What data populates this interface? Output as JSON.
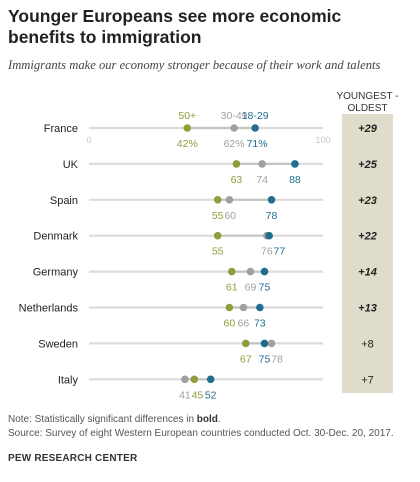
{
  "title": "Younger Europeans see more economic benefits to immigration",
  "subtitle": "Immigrants make our economy stronger because of their work and talents",
  "note": {
    "prefix": "Note: Statistically significant differences in ",
    "bold": "bold",
    "suffix": "."
  },
  "source": "Source: Survey of eight Western European countries conducted Oct. 30-Dec. 20, 2017.",
  "brand": "PEW RESEARCH CENTER",
  "chart_data": {
    "type": "scatter",
    "title": "Younger Europeans see more economic benefits to immigration",
    "subtitle": "Immigrants make our economy stronger because of their work and talents",
    "axis_min_label": "0",
    "axis_max_label": "100",
    "xlim": [
      0,
      100
    ],
    "diff_header": [
      "YOUNGEST -",
      "OLDEST"
    ],
    "legend": [
      "50+",
      "30-49",
      "18-29"
    ],
    "series": [
      {
        "name": "50+",
        "color": "#8f9e3a"
      },
      {
        "name": "30-49",
        "color": "#a0a0a0"
      },
      {
        "name": "18-29",
        "color": "#1f6e8f"
      }
    ],
    "colors": {
      "diff_column": "#e0dccb",
      "track": "#dcdcdc",
      "label_dark": "#222222"
    },
    "rows": [
      {
        "country": "France",
        "values": [
          42,
          62,
          71
        ],
        "labels": [
          "42%",
          "62%",
          "71%"
        ],
        "diff": "+29",
        "significant": true
      },
      {
        "country": "UK",
        "values": [
          63,
          74,
          88
        ],
        "labels": [
          "63",
          "74",
          "88"
        ],
        "diff": "+25",
        "significant": true
      },
      {
        "country": "Spain",
        "values": [
          55,
          60,
          78
        ],
        "labels": [
          "55",
          "60",
          "78"
        ],
        "diff": "+23",
        "significant": true
      },
      {
        "country": "Denmark",
        "values": [
          55,
          76,
          77
        ],
        "labels": [
          "55",
          "76",
          "77"
        ],
        "diff": "+22",
        "significant": true
      },
      {
        "country": "Germany",
        "values": [
          61,
          69,
          75
        ],
        "labels": [
          "61",
          "69",
          "75"
        ],
        "diff": "+14",
        "significant": true
      },
      {
        "country": "Netherlands",
        "values": [
          60,
          66,
          73
        ],
        "labels": [
          "60",
          "66",
          "73"
        ],
        "diff": "+13",
        "significant": true
      },
      {
        "country": "Sweden",
        "values": [
          67,
          78,
          75
        ],
        "labels": [
          "67",
          "78",
          "75"
        ],
        "diff": "+8",
        "significant": false
      },
      {
        "country": "Italy",
        "values": [
          45,
          41,
          52
        ],
        "labels": [
          "45",
          "41",
          "52"
        ],
        "diff": "+7",
        "significant": false
      }
    ]
  }
}
